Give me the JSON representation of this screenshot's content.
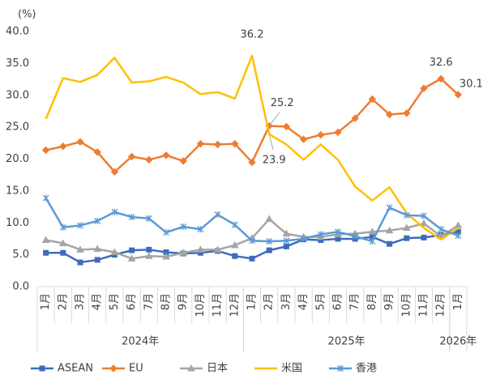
{
  "chart_data": {
    "type": "line",
    "y_label": "(%)",
    "groups": [
      {
        "label": "2024年",
        "categories": [
          "1月",
          "2月",
          "3月",
          "4月",
          "5月",
          "6月",
          "7月",
          "8月",
          "9月",
          "10月",
          "11月",
          "12月"
        ]
      },
      {
        "label": "2025年",
        "categories": [
          "1月",
          "2月",
          "3月",
          "4月",
          "5月",
          "6月",
          "7月",
          "8月",
          "9月",
          "10月",
          "11月",
          "12月"
        ]
      },
      {
        "label": "2026年",
        "categories": [
          "1月"
        ]
      }
    ],
    "ylim": [
      0,
      40
    ],
    "yticks": [
      {
        "value": 0,
        "label": "0.0"
      },
      {
        "value": 5,
        "label": "5.0"
      },
      {
        "value": 10,
        "label": "10.0"
      },
      {
        "value": 15,
        "label": "15.0"
      },
      {
        "value": 20,
        "label": "20.0"
      },
      {
        "value": 25,
        "label": "25.0"
      },
      {
        "value": 30,
        "label": "30.0"
      },
      {
        "value": 35,
        "label": "35.0"
      },
      {
        "value": 40,
        "label": "40.0"
      }
    ],
    "grid": false,
    "legend": "bottom",
    "series": [
      {
        "name": "ASEAN",
        "color": "#3f6bbf",
        "marker": "square",
        "values": [
          5.3,
          5.3,
          3.8,
          4.2,
          5.0,
          5.7,
          5.8,
          5.4,
          5.2,
          5.3,
          5.6,
          4.8,
          4.4,
          5.7,
          6.3,
          7.4,
          7.3,
          7.5,
          7.5,
          7.8,
          6.7,
          7.6,
          7.7,
          8.1,
          8.6
        ]
      },
      {
        "name": "EU",
        "color": "#ed7d31",
        "marker": "diamond",
        "values": [
          21.4,
          22.0,
          22.7,
          21.1,
          18.0,
          20.4,
          19.9,
          20.6,
          19.7,
          22.4,
          22.3,
          22.4,
          19.5,
          25.2,
          25.1,
          23.1,
          23.8,
          24.2,
          26.4,
          29.4,
          27.0,
          27.2,
          31.1,
          32.6,
          30.1
        ],
        "value_labels": [
          null,
          null,
          null,
          null,
          null,
          null,
          null,
          null,
          null,
          null,
          null,
          null,
          null,
          "25.2",
          null,
          null,
          null,
          null,
          null,
          null,
          null,
          null,
          null,
          "32.6",
          "30.1"
        ]
      },
      {
        "name": "日本",
        "color": "#a5a5a5",
        "marker": "triangle",
        "values": [
          7.3,
          6.8,
          5.8,
          5.9,
          5.4,
          4.4,
          4.8,
          4.7,
          5.3,
          5.8,
          5.8,
          6.5,
          7.6,
          10.6,
          8.3,
          7.8,
          7.8,
          8.2,
          8.3,
          8.6,
          8.8,
          9.2,
          9.9,
          7.9,
          9.6
        ]
      },
      {
        "name": "米国",
        "color": "#ffc000",
        "marker": "none",
        "values": [
          26.3,
          32.7,
          32.1,
          33.2,
          35.9,
          32.0,
          32.2,
          32.9,
          32.0,
          30.2,
          30.5,
          29.5,
          36.2,
          23.9,
          22.3,
          19.9,
          22.3,
          19.9,
          15.7,
          13.5,
          15.6,
          11.5,
          9.2,
          7.4,
          9.2
        ],
        "value_labels": [
          null,
          null,
          null,
          null,
          null,
          null,
          null,
          null,
          null,
          null,
          null,
          null,
          "36.2",
          "23.9",
          null,
          null,
          null,
          null,
          null,
          null,
          null,
          null,
          null,
          null,
          null
        ]
      },
      {
        "name": "香港",
        "color": "#5b9bd5",
        "marker": "x",
        "values": [
          13.9,
          9.3,
          9.6,
          10.3,
          11.7,
          10.9,
          10.7,
          8.5,
          9.4,
          9.0,
          11.3,
          9.7,
          7.2,
          7.1,
          7.2,
          7.5,
          8.2,
          8.6,
          7.9,
          7.1,
          12.4,
          11.2,
          11.1,
          9.0,
          8.0
        ]
      }
    ]
  }
}
